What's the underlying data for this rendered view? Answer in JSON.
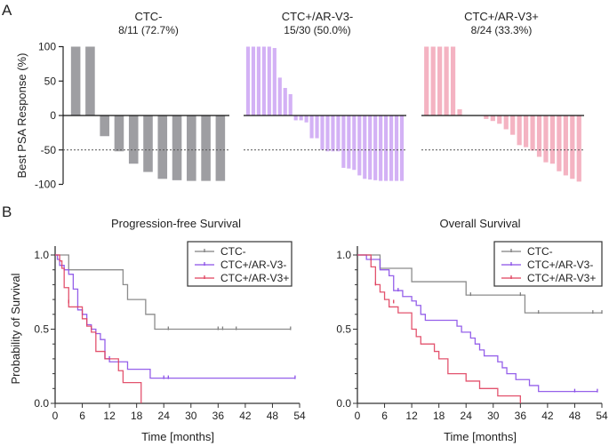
{
  "panels": {
    "a": "A",
    "b": "B"
  },
  "colors": {
    "ctc_neg": "#9e9ea2",
    "ar_v3_neg_bar": "#d3b1f5",
    "ar_v3_pos_bar": "#f4b3c2",
    "km_ctc_neg": "#808080",
    "km_ar_v3_neg": "#8a4fe8",
    "km_ar_v3_pos": "#e0405e"
  },
  "chart_data": [
    {
      "type": "bar",
      "id": "waterfall-ctc-neg",
      "title": "CTC-",
      "subtitle": "8/11 (72.7%)",
      "ylabel": "Best PSA Response (%)",
      "ylim": [
        -100,
        100
      ],
      "yticks": [
        100,
        50,
        0,
        -50,
        -100
      ],
      "reference_line": -50,
      "values": [
        100,
        100,
        -30,
        -52,
        -70,
        -82,
        -92,
        -94,
        -95,
        -95,
        -95
      ]
    },
    {
      "type": "bar",
      "id": "waterfall-ar-v3-neg",
      "title": "CTC+/AR-V3-",
      "subtitle": "15/30 (50.0%)",
      "ylim": [
        -100,
        100
      ],
      "reference_line": -50,
      "values": [
        100,
        100,
        100,
        100,
        100,
        98,
        55,
        40,
        31,
        -7,
        -7,
        -10,
        -33,
        -33,
        -50,
        -52,
        -52,
        -52,
        -76,
        -77,
        -79,
        -87,
        -92,
        -93,
        -94,
        -95,
        -95,
        -95,
        -95,
        -95
      ]
    },
    {
      "type": "bar",
      "id": "waterfall-ar-v3-pos",
      "title": "CTC+/AR-V3+",
      "subtitle": "8/24 (33.3%)",
      "ylim": [
        -100,
        100
      ],
      "reference_line": -50,
      "values": [
        100,
        100,
        100,
        100,
        100,
        9,
        0,
        0,
        0,
        -5,
        -8,
        -12,
        -20,
        -28,
        -43,
        -46,
        -51,
        -60,
        -68,
        -70,
        -81,
        -87,
        -92,
        -96
      ]
    },
    {
      "type": "line",
      "id": "km-pfs",
      "title": "Progression-free Survival",
      "xlabel": "Time [months]",
      "ylabel": "Probability of Survival",
      "xlim": [
        0,
        54
      ],
      "ylim": [
        0,
        1
      ],
      "xticks": [
        0,
        6,
        12,
        18,
        24,
        30,
        36,
        42,
        48,
        54
      ],
      "yticks": [
        "0.0",
        "0.5",
        "1.0"
      ],
      "legend": "top-right",
      "series": [
        {
          "name": "CTC-",
          "color_key": "km_ctc_neg",
          "steps": [
            [
              0,
              1.0
            ],
            [
              3,
              0.9
            ],
            [
              15,
              0.8
            ],
            [
              16,
              0.7
            ],
            [
              20,
              0.6
            ],
            [
              22,
              0.5
            ],
            [
              52,
              0.5
            ]
          ],
          "censor": [
            [
              25,
              0.5
            ],
            [
              36,
              0.5
            ],
            [
              37,
              0.5
            ],
            [
              40,
              0.5
            ],
            [
              52,
              0.5
            ]
          ]
        },
        {
          "name": "CTC+/AR-V3-",
          "color_key": "km_ar_v3_neg",
          "steps": [
            [
              0,
              1.0
            ],
            [
              0.5,
              0.97
            ],
            [
              1,
              0.93
            ],
            [
              2,
              0.9
            ],
            [
              3,
              0.87
            ],
            [
              4,
              0.77
            ],
            [
              5,
              0.63
            ],
            [
              6,
              0.6
            ],
            [
              7,
              0.53
            ],
            [
              8,
              0.5
            ],
            [
              9,
              0.47
            ],
            [
              10,
              0.43
            ],
            [
              11,
              0.3
            ],
            [
              12,
              0.28
            ],
            [
              16,
              0.23
            ],
            [
              21,
              0.17
            ],
            [
              53,
              0.17
            ]
          ],
          "censor": [
            [
              12,
              0.3
            ],
            [
              24,
              0.17
            ],
            [
              25,
              0.17
            ],
            [
              53,
              0.17
            ]
          ]
        },
        {
          "name": "CTC+/AR-V3+",
          "color_key": "km_ar_v3_pos",
          "steps": [
            [
              0,
              1.0
            ],
            [
              1,
              0.96
            ],
            [
              1.5,
              0.91
            ],
            [
              2,
              0.78
            ],
            [
              3,
              0.65
            ],
            [
              6,
              0.57
            ],
            [
              7,
              0.52
            ],
            [
              8,
              0.48
            ],
            [
              9,
              0.35
            ],
            [
              11,
              0.3
            ],
            [
              14,
              0.22
            ],
            [
              15,
              0.14
            ],
            [
              19,
              0.0
            ]
          ],
          "censor": [
            [
              3,
              0.68
            ]
          ]
        }
      ]
    },
    {
      "type": "line",
      "id": "km-os",
      "title": "Overall Survival",
      "xlabel": "Time [months]",
      "ylabel": "",
      "xlim": [
        0,
        54
      ],
      "ylim": [
        0,
        1
      ],
      "xticks": [
        0,
        6,
        12,
        18,
        24,
        30,
        36,
        42,
        48,
        54
      ],
      "yticks": [
        "0.0",
        "0.5",
        "1.0"
      ],
      "legend": "top-right",
      "series": [
        {
          "name": "CTC-",
          "color_key": "km_ctc_neg",
          "steps": [
            [
              0,
              1.0
            ],
            [
              5,
              0.91
            ],
            [
              12,
              0.82
            ],
            [
              24,
              0.73
            ],
            [
              37,
              0.61
            ],
            [
              54,
              0.61
            ]
          ],
          "censor": [
            [
              25,
              0.73
            ],
            [
              36,
              0.73
            ],
            [
              40,
              0.61
            ],
            [
              52,
              0.61
            ],
            [
              54,
              0.61
            ]
          ]
        },
        {
          "name": "CTC+/AR-V3-",
          "color_key": "km_ar_v3_neg",
          "steps": [
            [
              0,
              1.0
            ],
            [
              2,
              0.97
            ],
            [
              5,
              0.9
            ],
            [
              7,
              0.86
            ],
            [
              8,
              0.76
            ],
            [
              10,
              0.72
            ],
            [
              12,
              0.69
            ],
            [
              13,
              0.66
            ],
            [
              14,
              0.6
            ],
            [
              15,
              0.56
            ],
            [
              22,
              0.52
            ],
            [
              23,
              0.48
            ],
            [
              25,
              0.44
            ],
            [
              26,
              0.4
            ],
            [
              27,
              0.36
            ],
            [
              28,
              0.32
            ],
            [
              31,
              0.28
            ],
            [
              32,
              0.24
            ],
            [
              33,
              0.2
            ],
            [
              35,
              0.16
            ],
            [
              38,
              0.12
            ],
            [
              40,
              0.08
            ],
            [
              53,
              0.08
            ]
          ],
          "censor": [
            [
              3,
              0.97
            ],
            [
              9,
              0.76
            ],
            [
              48,
              0.08
            ],
            [
              53,
              0.08
            ]
          ]
        },
        {
          "name": "CTC+/AR-V3+",
          "color_key": "km_ar_v3_pos",
          "steps": [
            [
              0,
              1.0
            ],
            [
              3,
              0.92
            ],
            [
              4,
              0.8
            ],
            [
              5,
              0.75
            ],
            [
              6,
              0.7
            ],
            [
              7,
              0.65
            ],
            [
              9,
              0.61
            ],
            [
              12,
              0.5
            ],
            [
              13,
              0.45
            ],
            [
              14,
              0.4
            ],
            [
              17,
              0.35
            ],
            [
              18,
              0.3
            ],
            [
              20,
              0.2
            ],
            [
              24,
              0.15
            ],
            [
              27,
              0.1
            ],
            [
              31,
              0.05
            ],
            [
              36,
              0.0
            ]
          ],
          "censor": [
            [
              4,
              0.8
            ],
            [
              8,
              0.68
            ]
          ]
        }
      ]
    }
  ]
}
